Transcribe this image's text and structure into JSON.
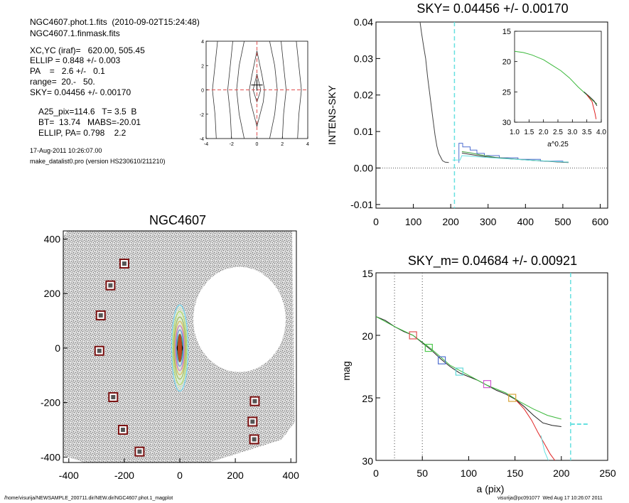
{
  "header": {
    "lines": [
      "NGC4607.phot.1.fits  (2010-09-02T15:24:48)",
      "NGC4607.1.finmask.fits"
    ],
    "fit_lines": [
      "XC,YC (iraf)=   620.00, 505.45",
      "ELLIP = 0.848 +/- 0.003",
      "PA    =   2.6 +/-   0.1",
      "range=  20.-   50.",
      "SKY= 0.04456 +/- 0.00170"
    ],
    "result_lines": [
      "A25_pix=114.6   T= 3.5  B",
      "BT=  13.74   MABS=-20.01",
      "ELLIP, PA= 0.798    2.2"
    ],
    "date": "17-Aug-2011 10:26:07.00",
    "program": "make_datalist0.pro (version HS230610/211210)"
  },
  "footer": {
    "path": "/home/visurija/NEWSAMPLE_200711.dir/NEW.dir/NGC4607.phot.1_magplot",
    "user": "visurija@pc091077  Wed Aug 17 10:26:07 2011"
  },
  "chart_data": [
    {
      "type": "line",
      "id": "centering",
      "title": "",
      "xlim": [
        -4,
        4
      ],
      "ylim": [
        -4,
        4
      ],
      "x_ticks": [
        "-4",
        "-2",
        "0",
        "2",
        "4"
      ],
      "y_ticks": [
        "-4",
        "-2",
        "0",
        "2",
        "4"
      ],
      "series": [
        {
          "values": [
            [
              -3.2,
              -4
            ],
            [
              -3.3,
              -2
            ],
            [
              -3.5,
              0
            ],
            [
              -3.3,
              2
            ],
            [
              -3.1,
              4
            ]
          ]
        },
        {
          "values": [
            [
              -2.0,
              -4
            ],
            [
              -2.1,
              -2
            ],
            [
              -2.3,
              0
            ],
            [
              -2.1,
              2
            ],
            [
              -1.9,
              4
            ]
          ]
        },
        {
          "values": [
            [
              -1.0,
              -4
            ],
            [
              -1.4,
              -2
            ],
            [
              -1.6,
              0
            ],
            [
              -1.4,
              2
            ],
            [
              -1.0,
              4
            ]
          ]
        },
        {
          "values": [
            [
              0,
              -3
            ],
            [
              -0.5,
              -1
            ],
            [
              -0.6,
              0
            ],
            [
              -0.4,
              1.2
            ],
            [
              0,
              3.2
            ]
          ]
        },
        {
          "values": [
            [
              0,
              -3
            ],
            [
              0.5,
              -1
            ],
            [
              0.6,
              0
            ],
            [
              0.4,
              1.2
            ],
            [
              0,
              3.2
            ]
          ]
        },
        {
          "values": [
            [
              0,
              -1
            ],
            [
              -0.3,
              0
            ],
            [
              0,
              1.3
            ]
          ]
        },
        {
          "values": [
            [
              0,
              -1
            ],
            [
              0.3,
              0
            ],
            [
              0,
              1.3
            ]
          ]
        },
        {
          "values": [
            [
              1.0,
              -4
            ],
            [
              1.4,
              -2
            ],
            [
              1.6,
              0
            ],
            [
              1.4,
              2
            ],
            [
              1.0,
              4
            ]
          ]
        },
        {
          "values": [
            [
              2.0,
              -4
            ],
            [
              2.1,
              -2
            ],
            [
              2.3,
              0
            ],
            [
              2.1,
              2
            ],
            [
              1.9,
              4
            ]
          ]
        },
        {
          "values": [
            [
              3.2,
              -4
            ],
            [
              3.3,
              -2
            ],
            [
              3.5,
              0
            ],
            [
              3.3,
              2
            ],
            [
              3.1,
              4
            ]
          ]
        }
      ],
      "center": [
        0,
        0.4
      ],
      "reference_lines": {
        "x": 0,
        "y": 0,
        "color": "#e0504f"
      }
    },
    {
      "type": "line",
      "id": "sky-profile",
      "title": "SKY= 0.04456 +/- 0.00170",
      "xlabel": "",
      "ylabel": "INTENS-SKY",
      "xlim": [
        0,
        620
      ],
      "ylim": [
        -0.011,
        0.04
      ],
      "x_ticks": [
        0,
        100,
        200,
        300,
        400,
        500,
        600
      ],
      "y_ticks": [
        -0.01,
        0.0,
        0.01,
        0.02,
        0.03,
        0.04
      ],
      "y_tick_labels": [
        "-0.01",
        "0.00",
        "0.01",
        "0.02",
        "0.03",
        "0.04"
      ],
      "zero_line": 0,
      "sky_radius": 210,
      "series": [
        {
          "color": "#444444",
          "values": [
            [
              118,
              0.04
            ],
            [
              122,
              0.037
            ],
            [
              128,
              0.033
            ],
            [
              133,
              0.03
            ],
            [
              138,
              0.025
            ],
            [
              143,
              0.021
            ],
            [
              148,
              0.017
            ],
            [
              153,
              0.013
            ],
            [
              158,
              0.009
            ],
            [
              163,
              0.006
            ],
            [
              168,
              0.004
            ],
            [
              173,
              0.003
            ],
            [
              178,
              0.002
            ],
            [
              185,
              0.0016
            ],
            [
              195,
              0.0015
            ]
          ]
        },
        {
          "color": "#4f6fd0",
          "values": [
            [
              222,
              0.0014
            ],
            [
              222,
              0.0068
            ],
            [
              232,
              0.0068
            ],
            [
              232,
              0.0058
            ],
            [
              252,
              0.0058
            ],
            [
              252,
              0.0049
            ],
            [
              270,
              0.0049
            ],
            [
              270,
              0.004
            ],
            [
              290,
              0.004
            ],
            [
              290,
              0.0034
            ],
            [
              330,
              0.0034
            ],
            [
              330,
              0.0028
            ],
            [
              380,
              0.0028
            ],
            [
              380,
              0.0024
            ],
            [
              440,
              0.0024
            ],
            [
              440,
              0.0019
            ],
            [
              500,
              0.0019
            ],
            [
              500,
              0.0016
            ],
            [
              515,
              0.0016
            ]
          ]
        },
        {
          "color": "#3e9d3e",
          "values": [
            [
              230,
              0.0045
            ],
            [
              250,
              0.0042
            ],
            [
              280,
              0.0036
            ],
            [
              320,
              0.0029
            ],
            [
              380,
              0.0024
            ],
            [
              440,
              0.002
            ],
            [
              500,
              0.0016
            ],
            [
              515,
              0.0016
            ]
          ]
        },
        {
          "color": "#333333",
          "values": [
            [
              230,
              0.0041
            ],
            [
              260,
              0.0036
            ],
            [
              300,
              0.003
            ],
            [
              360,
              0.0025
            ],
            [
              420,
              0.0021
            ],
            [
              480,
              0.0017
            ],
            [
              515,
              0.0015
            ]
          ]
        },
        {
          "color": "#66e0e0",
          "values": [
            [
              205,
              0.0022
            ],
            [
              225,
              0.0022
            ],
            [
              230,
              0.0034
            ],
            [
              270,
              0.0031
            ],
            [
              340,
              0.0026
            ],
            [
              420,
              0.0021
            ],
            [
              515,
              0.0016
            ]
          ]
        }
      ]
    },
    {
      "type": "line",
      "id": "inset",
      "title": "",
      "xlabel": "a^0.25",
      "xlim": [
        1.0,
        4.0
      ],
      "ylim": [
        30,
        15
      ],
      "x_ticks": [
        1.0,
        1.5,
        2.0,
        2.5,
        3.0,
        3.5,
        4.0
      ],
      "x_tick_labels": [
        "1.0",
        "1.5",
        "2.0",
        "2.5",
        "3.0",
        "3.5",
        "4.0"
      ],
      "y_ticks": [
        15,
        20,
        25,
        30
      ],
      "series": [
        {
          "color": "#3ab83a",
          "values": [
            [
              1.0,
              18.3
            ],
            [
              1.3,
              18.5
            ],
            [
              1.6,
              18.9
            ],
            [
              2.0,
              19.7
            ],
            [
              2.3,
              20.6
            ],
            [
              2.6,
              21.5
            ],
            [
              2.9,
              22.7
            ],
            [
              3.2,
              24.2
            ],
            [
              3.5,
              25.5
            ],
            [
              3.7,
              26.4
            ],
            [
              3.85,
              27.0
            ]
          ]
        },
        {
          "color": "#333333",
          "values": [
            [
              3.4,
              25.0
            ],
            [
              3.6,
              25.8
            ],
            [
              3.75,
              26.5
            ],
            [
              3.85,
              27.3
            ]
          ]
        },
        {
          "color": "#e02020",
          "values": [
            [
              3.5,
              25.5
            ],
            [
              3.68,
              26.6
            ],
            [
              3.78,
              28.5
            ],
            [
              3.82,
              29.5
            ]
          ]
        }
      ]
    },
    {
      "type": "scatter",
      "id": "galaxy-image",
      "title": "NGC4607",
      "xlim": [
        -420,
        420
      ],
      "ylim": [
        -420,
        430
      ],
      "x_ticks": [
        -400,
        -200,
        0,
        200,
        400
      ],
      "y_ticks": [
        -400,
        -200,
        0,
        200,
        400
      ],
      "masked_stars": [
        [
          -200,
          310
        ],
        [
          -250,
          230
        ],
        [
          -285,
          120
        ],
        [
          -290,
          -10
        ],
        [
          -240,
          -180
        ],
        [
          -205,
          -300
        ],
        [
          -145,
          -380
        ],
        [
          270,
          -195
        ],
        [
          262,
          -270
        ],
        [
          268,
          -335
        ]
      ],
      "galaxy": {
        "center": [
          0,
          0
        ],
        "semi_major": 210,
        "ellip": 0.848
      }
    },
    {
      "type": "line",
      "id": "mag-profile",
      "title": "SKY_m=  0.04684 +/- 0.00921",
      "xlabel": "a (pix)",
      "ylabel": "mag",
      "xlim": [
        0,
        250
      ],
      "ylim": [
        30,
        15
      ],
      "x_ticks": [
        0,
        50,
        100,
        150,
        200,
        250
      ],
      "y_ticks": [
        15,
        20,
        25,
        30
      ],
      "dotted_lines": [
        20,
        50
      ],
      "sky_radius": 210,
      "series": [
        {
          "color": "#222222",
          "values": [
            [
              0,
              18.5
            ],
            [
              10,
              18.8
            ],
            [
              20,
              19.3
            ],
            [
              30,
              19.7
            ],
            [
              40,
              20.0
            ],
            [
              50,
              20.6
            ],
            [
              60,
              21.2
            ],
            [
              70,
              21.9
            ],
            [
              80,
              22.5
            ],
            [
              90,
              23.0
            ],
            [
              100,
              23.3
            ],
            [
              110,
              23.6
            ],
            [
              120,
              24.0
            ],
            [
              130,
              24.4
            ],
            [
              140,
              24.7
            ],
            [
              150,
              25.1
            ],
            [
              160,
              25.7
            ],
            [
              170,
              26.4
            ],
            [
              180,
              27.0
            ],
            [
              190,
              27.2
            ],
            [
              200,
              27.3
            ]
          ]
        },
        {
          "color": "#3ab83a",
          "values": [
            [
              0,
              18.5
            ],
            [
              20,
              19.3
            ],
            [
              40,
              20.0
            ],
            [
              60,
              21.1
            ],
            [
              80,
              22.4
            ],
            [
              100,
              23.2
            ],
            [
              120,
              24.0
            ],
            [
              140,
              24.6
            ],
            [
              155,
              25.3
            ],
            [
              170,
              25.9
            ],
            [
              185,
              26.4
            ],
            [
              200,
              26.7
            ]
          ]
        },
        {
          "color": "#e02020",
          "values": [
            [
              150,
              25.1
            ],
            [
              160,
              25.9
            ],
            [
              168,
              26.8
            ],
            [
              175,
              27.8
            ],
            [
              182,
              28.7
            ],
            [
              188,
              29.5
            ],
            [
              193,
              30.0
            ]
          ]
        },
        {
          "color": "#66e0e0",
          "values": [
            [
              178,
              28.0
            ],
            [
              182,
              29.3
            ],
            [
              186,
              30.0
            ]
          ]
        }
      ],
      "sky_mag_line": {
        "color": "#66e0e0",
        "values": [
          [
            210,
            27.1
          ],
          [
            230,
            27.1
          ]
        ]
      },
      "markers": [
        {
          "a": 40,
          "mag": 20.0,
          "color": "#e05050"
        },
        {
          "a": 57,
          "mag": 21.0,
          "color": "#4ec94e"
        },
        {
          "a": 71,
          "mag": 22.0,
          "color": "#4f6fd0"
        },
        {
          "a": 90,
          "mag": 22.9,
          "color": "#63d9d9"
        },
        {
          "a": 120,
          "mag": 23.9,
          "color": "#d05ad0"
        },
        {
          "a": 147,
          "mag": 25.0,
          "color": "#d7a43a"
        }
      ]
    }
  ]
}
